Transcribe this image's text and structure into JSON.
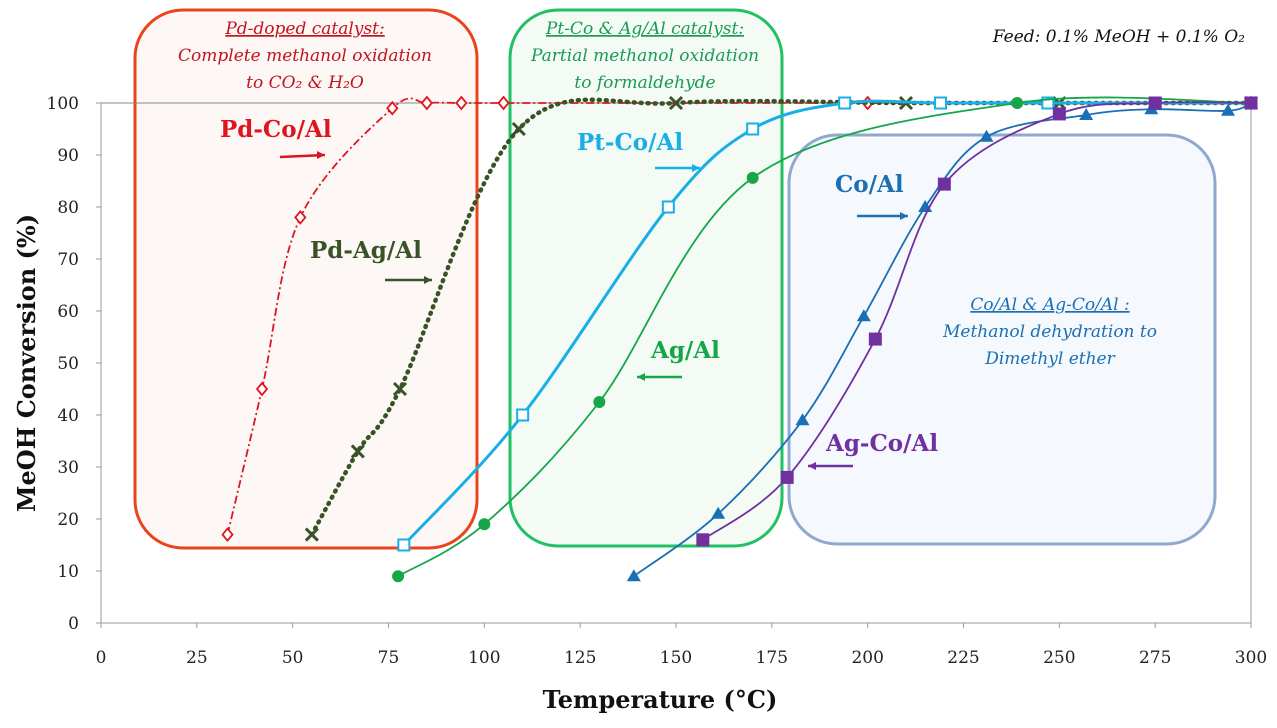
{
  "chart_data": {
    "type": "line",
    "xlabel": "Temperature (°C)",
    "ylabel": "MeOH Conversion (%)",
    "xlim": [
      0,
      300
    ],
    "ylim": [
      0,
      100
    ],
    "xticks": [
      0,
      25,
      50,
      75,
      100,
      125,
      150,
      175,
      200,
      225,
      250,
      275,
      300
    ],
    "yticks": [
      0,
      10,
      20,
      30,
      40,
      50,
      60,
      70,
      80,
      90,
      100
    ],
    "feed_note": "Feed: 0.1% MeOH + 0.1% O₂",
    "series": [
      {
        "name": "Pd-Co/Al",
        "color": "#e0141e",
        "marker": "diamond-open",
        "line": "dashdot",
        "x": [
          33,
          42,
          52,
          76,
          85,
          94,
          105,
          200,
          300
        ],
        "y": [
          17,
          45,
          78,
          99,
          100,
          100,
          100,
          100,
          100
        ]
      },
      {
        "name": "Pd-Ag/Al",
        "color": "#3a5228",
        "marker": "x",
        "line": "dotted",
        "x": [
          55,
          67,
          78,
          109,
          150,
          210,
          250,
          300
        ],
        "y": [
          17,
          33,
          45,
          95,
          100,
          100,
          100,
          100
        ]
      },
      {
        "name": "Pt-Co/Al",
        "color": "#1aaee6",
        "marker": "square-open",
        "line": "solid",
        "x": [
          79,
          110,
          148,
          170,
          194,
          219,
          247,
          275,
          300
        ],
        "y": [
          15,
          40,
          80,
          95,
          100,
          100,
          100,
          100,
          100
        ]
      },
      {
        "name": "Ag/Al",
        "color": "#16a64a",
        "marker": "circle",
        "line": "solid",
        "x": [
          77.5,
          100,
          130,
          170,
          239,
          300
        ],
        "y": [
          9,
          19,
          42.5,
          85.6,
          100,
          100
        ]
      },
      {
        "name": "Co/Al",
        "color": "#1a6fb5",
        "marker": "triangle",
        "line": "solid",
        "x": [
          139,
          161,
          183,
          199,
          215,
          231,
          257,
          274,
          294,
          300
        ],
        "y": [
          9,
          21,
          39,
          59,
          80,
          93.5,
          97.7,
          98.8,
          98.5,
          100
        ]
      },
      {
        "name": "Ag-Co/Al",
        "color": "#7030a0",
        "marker": "square",
        "line": "solid",
        "x": [
          157,
          179,
          202,
          220,
          250,
          275,
          300
        ],
        "y": [
          16,
          28,
          54.6,
          84.4,
          97.9,
          100,
          100
        ]
      }
    ],
    "annotations": [
      {
        "title": "Pd-doped catalyst:",
        "lines": [
          "Complete methanol oxidation",
          "to CO₂ & H₂O"
        ],
        "color": "#c0141e",
        "border": "#e8451c"
      },
      {
        "title": "Pt-Co & Ag/Al catalyst:",
        "lines": [
          "Partial methanol oxidation",
          "to formaldehyde"
        ],
        "color": "#1a9a55",
        "border": "#22c064"
      },
      {
        "title": "Co/Al & Ag-Co/Al :",
        "lines": [
          "Methanol dehydration to",
          "Dimethyl ether"
        ],
        "color": "#1a6fb5",
        "border": "#8fa8d0"
      }
    ]
  }
}
